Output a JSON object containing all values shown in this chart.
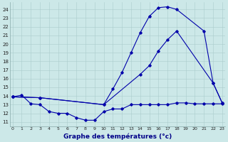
{
  "bg_color": "#cce8e8",
  "line_color": "#0000aa",
  "grid_color": "#aacccc",
  "xlabel": "Graphe des températures (°c)",
  "yticks": [
    11,
    12,
    13,
    14,
    15,
    16,
    17,
    18,
    19,
    20,
    21,
    22,
    23,
    24
  ],
  "xticks": [
    0,
    1,
    2,
    3,
    4,
    5,
    6,
    7,
    8,
    9,
    10,
    11,
    12,
    13,
    14,
    15,
    16,
    17,
    18,
    19,
    20,
    21,
    22,
    23
  ],
  "xlim": [
    -0.3,
    23.3
  ],
  "ylim": [
    10.5,
    24.8
  ],
  "line1_x": [
    0,
    1,
    2,
    3,
    4,
    5,
    6,
    7,
    8,
    9,
    10,
    11,
    12,
    13,
    14,
    15,
    16,
    17,
    18,
    19,
    20,
    21,
    22,
    23
  ],
  "line1_y": [
    13.9,
    14.1,
    13.1,
    13.0,
    12.2,
    12.0,
    12.0,
    11.5,
    11.2,
    11.2,
    12.2,
    12.5,
    12.5,
    13.0,
    13.0,
    13.0,
    13.0,
    13.0,
    13.2,
    13.2,
    13.1,
    13.1,
    13.1,
    13.1
  ],
  "line2_x": [
    0,
    3,
    10,
    14,
    15,
    16,
    17,
    18,
    22,
    23
  ],
  "line2_y": [
    13.9,
    13.8,
    13.0,
    16.5,
    17.5,
    19.2,
    20.5,
    21.5,
    15.5,
    13.2
  ],
  "line3_x": [
    0,
    3,
    10,
    11,
    12,
    13,
    14,
    15,
    16,
    17,
    18,
    21,
    22,
    23
  ],
  "line3_y": [
    13.9,
    13.8,
    13.0,
    14.8,
    16.7,
    19.0,
    21.3,
    23.2,
    24.2,
    24.3,
    24.0,
    21.5,
    15.5,
    13.2
  ]
}
